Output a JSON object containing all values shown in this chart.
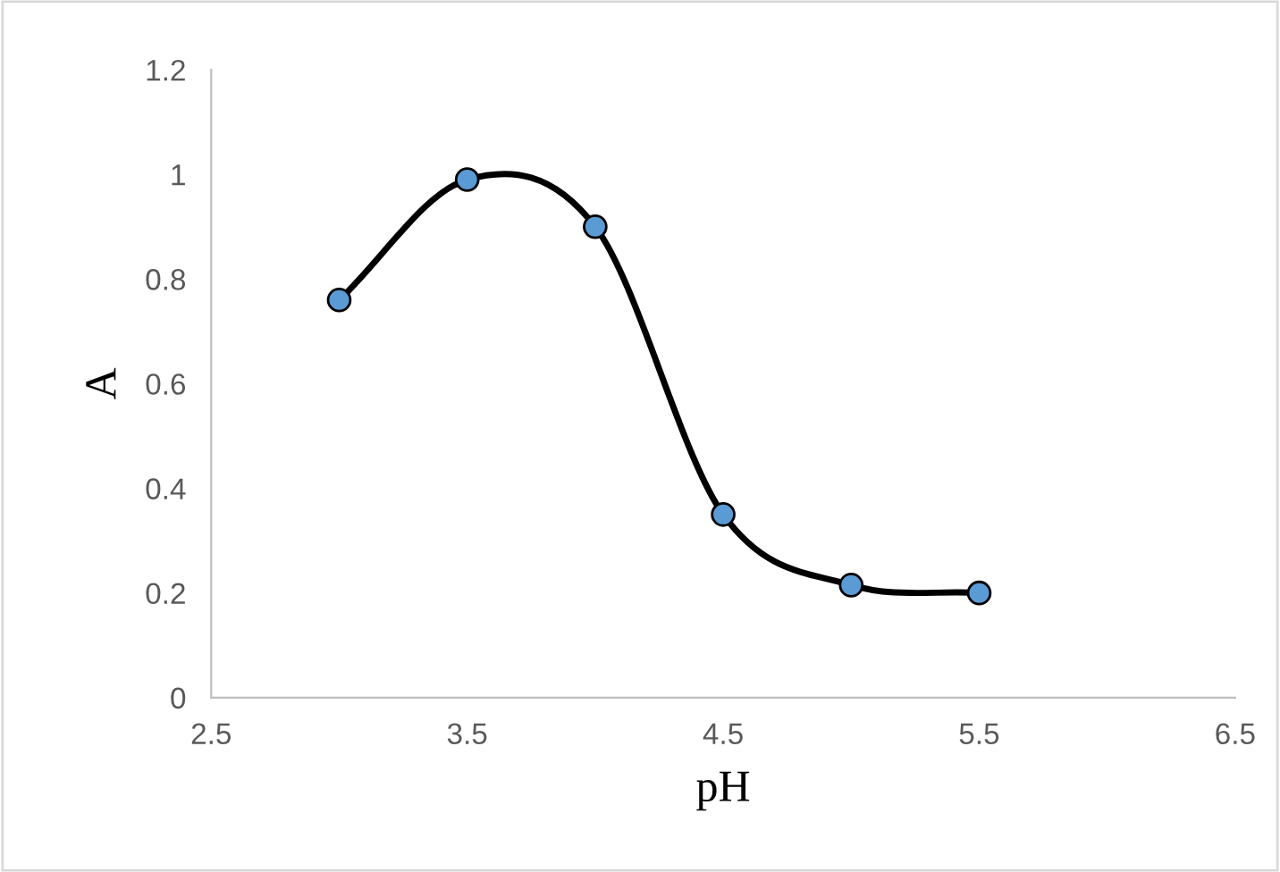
{
  "chart_data": {
    "type": "line",
    "xlabel": "pH",
    "ylabel": "A",
    "x": [
      3,
      3.5,
      4,
      4.5,
      5,
      5.5
    ],
    "series": [
      {
        "color": "#000000",
        "values": [
          0.76,
          0.99,
          0.9,
          0.35,
          0.215,
          0.2
        ]
      },
      {
        "type": "scatter",
        "color": "#5b9bd5",
        "marker": "circle",
        "values": [
          0.76,
          0.99,
          0.9,
          0.35,
          0.215,
          0.2
        ]
      }
    ],
    "xlim": [
      2.5,
      6.5
    ],
    "xticks": [
      2.5,
      3.5,
      4.5,
      5.5,
      6.5
    ],
    "ylim": [
      0,
      1.2
    ],
    "yticks": [
      0,
      0.2,
      0.4,
      0.6,
      0.8,
      1,
      1.2
    ],
    "grid": false,
    "legend": false
  }
}
